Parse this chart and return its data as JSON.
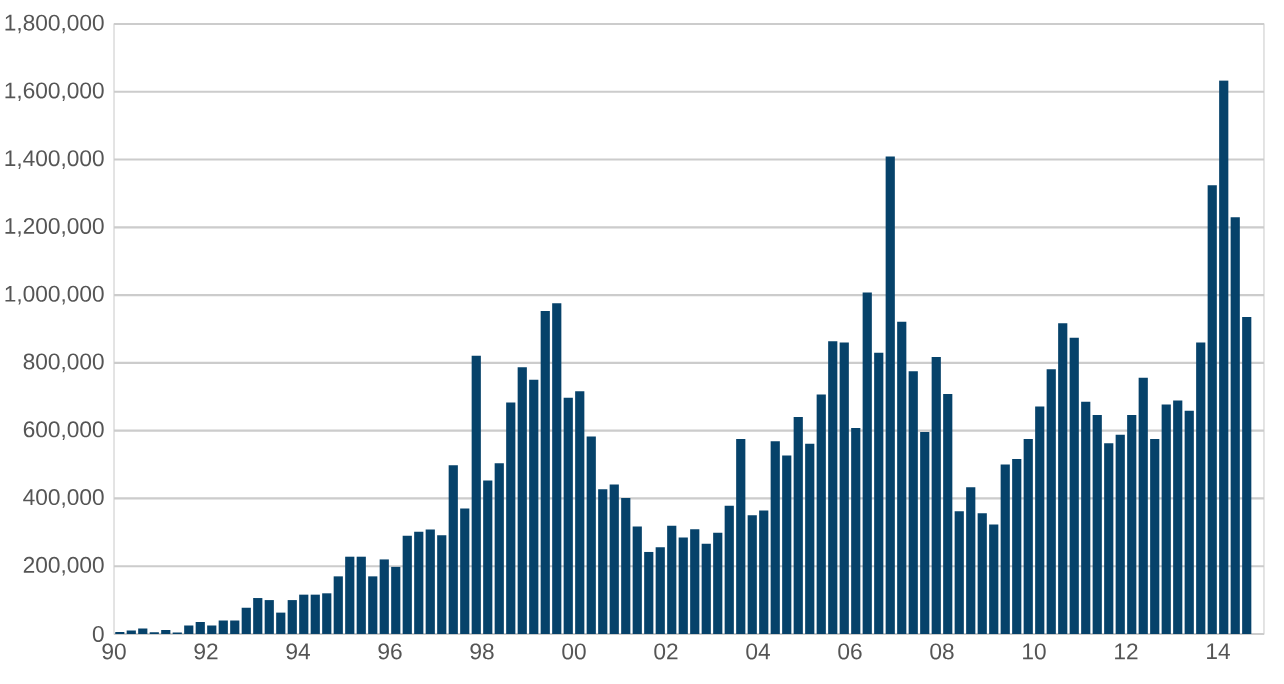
{
  "chart_data": {
    "type": "bar",
    "color": "#06426a",
    "grid": "y",
    "x": [
      1990,
      1990.25,
      1990.5,
      1990.75,
      1991,
      1991.25,
      1991.5,
      1991.75,
      1992,
      1992.25,
      1992.5,
      1992.75,
      1993,
      1993.25,
      1993.5,
      1993.75,
      1994,
      1994.25,
      1994.5,
      1994.75,
      1995,
      1995.25,
      1995.5,
      1995.75,
      1996,
      1996.25,
      1996.5,
      1996.75,
      1997,
      1997.25,
      1997.5,
      1997.75,
      1998,
      1998.25,
      1998.5,
      1998.75,
      1999,
      1999.25,
      1999.5,
      1999.75,
      2000,
      2000.25,
      2000.5,
      2000.75,
      2001,
      2001.25,
      2001.5,
      2001.75,
      2002,
      2002.25,
      2002.5,
      2002.75,
      2003,
      2003.25,
      2003.5,
      2003.75,
      2004,
      2004.25,
      2004.5,
      2004.75,
      2005,
      2005.25,
      2005.5,
      2005.75,
      2006,
      2006.25,
      2006.5,
      2006.75,
      2007,
      2007.25,
      2007.5,
      2007.75,
      2008,
      2008.25,
      2008.5,
      2008.75,
      2009,
      2009.25,
      2009.5,
      2009.75,
      2010,
      2010.25,
      2010.5,
      2010.75,
      2011,
      2011.25,
      2011.5,
      2011.75,
      2012,
      2012.25,
      2012.5,
      2012.75,
      2013,
      2013.25,
      2013.5,
      2013.75,
      2014,
      2014.25,
      2014.5
    ],
    "values": [
      6000,
      10000,
      16000,
      5000,
      12000,
      4000,
      25000,
      35000,
      25000,
      40000,
      40000,
      77000,
      106000,
      100000,
      63000,
      100000,
      116000,
      116000,
      120000,
      170000,
      228000,
      228000,
      170000,
      220000,
      198000,
      290000,
      302000,
      308000,
      291000,
      498000,
      370000,
      821000,
      453000,
      504000,
      683000,
      787000,
      750000,
      953000,
      976000,
      697000,
      716000,
      583000,
      427000,
      441000,
      401000,
      317000,
      242000,
      256000,
      319000,
      285000,
      309000,
      266000,
      299000,
      378000,
      575000,
      350000,
      364000,
      569000,
      527000,
      640000,
      561000,
      707000,
      864000,
      860000,
      608000,
      1008000,
      830000,
      1409000,
      921000,
      775000,
      596000,
      817000,
      708000,
      362000,
      433000,
      356000,
      323000,
      500000,
      516000,
      575000,
      671000,
      781000,
      917000,
      874000,
      685000,
      646000,
      563000,
      588000,
      646000,
      756000,
      575000,
      677000,
      689000,
      659000,
      860000,
      1324000,
      1633000,
      1230000,
      935000
    ],
    "xlim": [
      1990,
      2015
    ],
    "xticks": [
      {
        "value": 1990,
        "label": "90"
      },
      {
        "value": 1992,
        "label": "92"
      },
      {
        "value": 1994,
        "label": "94"
      },
      {
        "value": 1996,
        "label": "96"
      },
      {
        "value": 1998,
        "label": "98"
      },
      {
        "value": 2000,
        "label": "00"
      },
      {
        "value": 2002,
        "label": "02"
      },
      {
        "value": 2004,
        "label": "04"
      },
      {
        "value": 2006,
        "label": "06"
      },
      {
        "value": 2008,
        "label": "08"
      },
      {
        "value": 2010,
        "label": "10"
      },
      {
        "value": 2012,
        "label": "12"
      },
      {
        "value": 2014,
        "label": "14"
      }
    ],
    "ylim": [
      0,
      1800000
    ],
    "yticks": [
      0,
      {
        "value": 200000,
        "label": "200,000"
      },
      {
        "value": 400000,
        "label": "400,000"
      },
      {
        "value": 600000,
        "label": "600,000"
      },
      {
        "value": 800000,
        "label": "800,000"
      },
      {
        "value": 1000000,
        "label": "1,000,000"
      },
      {
        "value": 1200000,
        "label": "1,200,000"
      },
      {
        "value": 1400000,
        "label": "1,400,000"
      },
      {
        "value": 1600000,
        "label": "1,600,000"
      },
      {
        "value": 1800000,
        "label": "1,800,000"
      }
    ]
  }
}
